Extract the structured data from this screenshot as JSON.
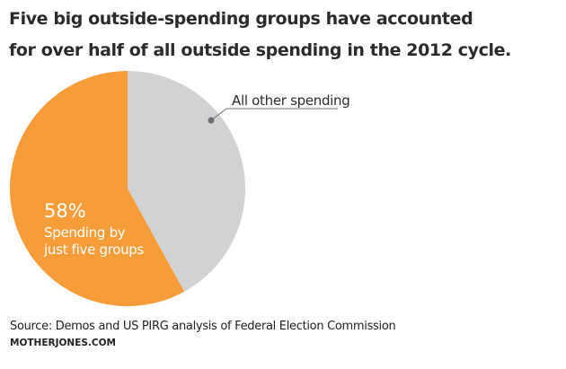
{
  "chart_data": {
    "type": "pie",
    "title": "Five big outside-spending groups have accounted for over half of all outside spending in the 2012 cycle.",
    "title_lines": [
      "Five big outside-spending groups have accounted",
      "for over half of all outside spending in the 2012 cycle."
    ],
    "slices": [
      {
        "name": "All other spending",
        "value": 42,
        "color": "#d1d2d4",
        "label": "All other spending"
      },
      {
        "name": "Spending by just five groups",
        "value": 58,
        "color": "#f69d3a",
        "percent_label": "58%",
        "label_lines": [
          "Spending by",
          "just five groups"
        ]
      }
    ],
    "start_angle": "top",
    "direction": "clockwise",
    "source": "Source: Demos and US PIRG analysis of Federal Election Commission",
    "credit": "MOTHERJONES.COM"
  }
}
